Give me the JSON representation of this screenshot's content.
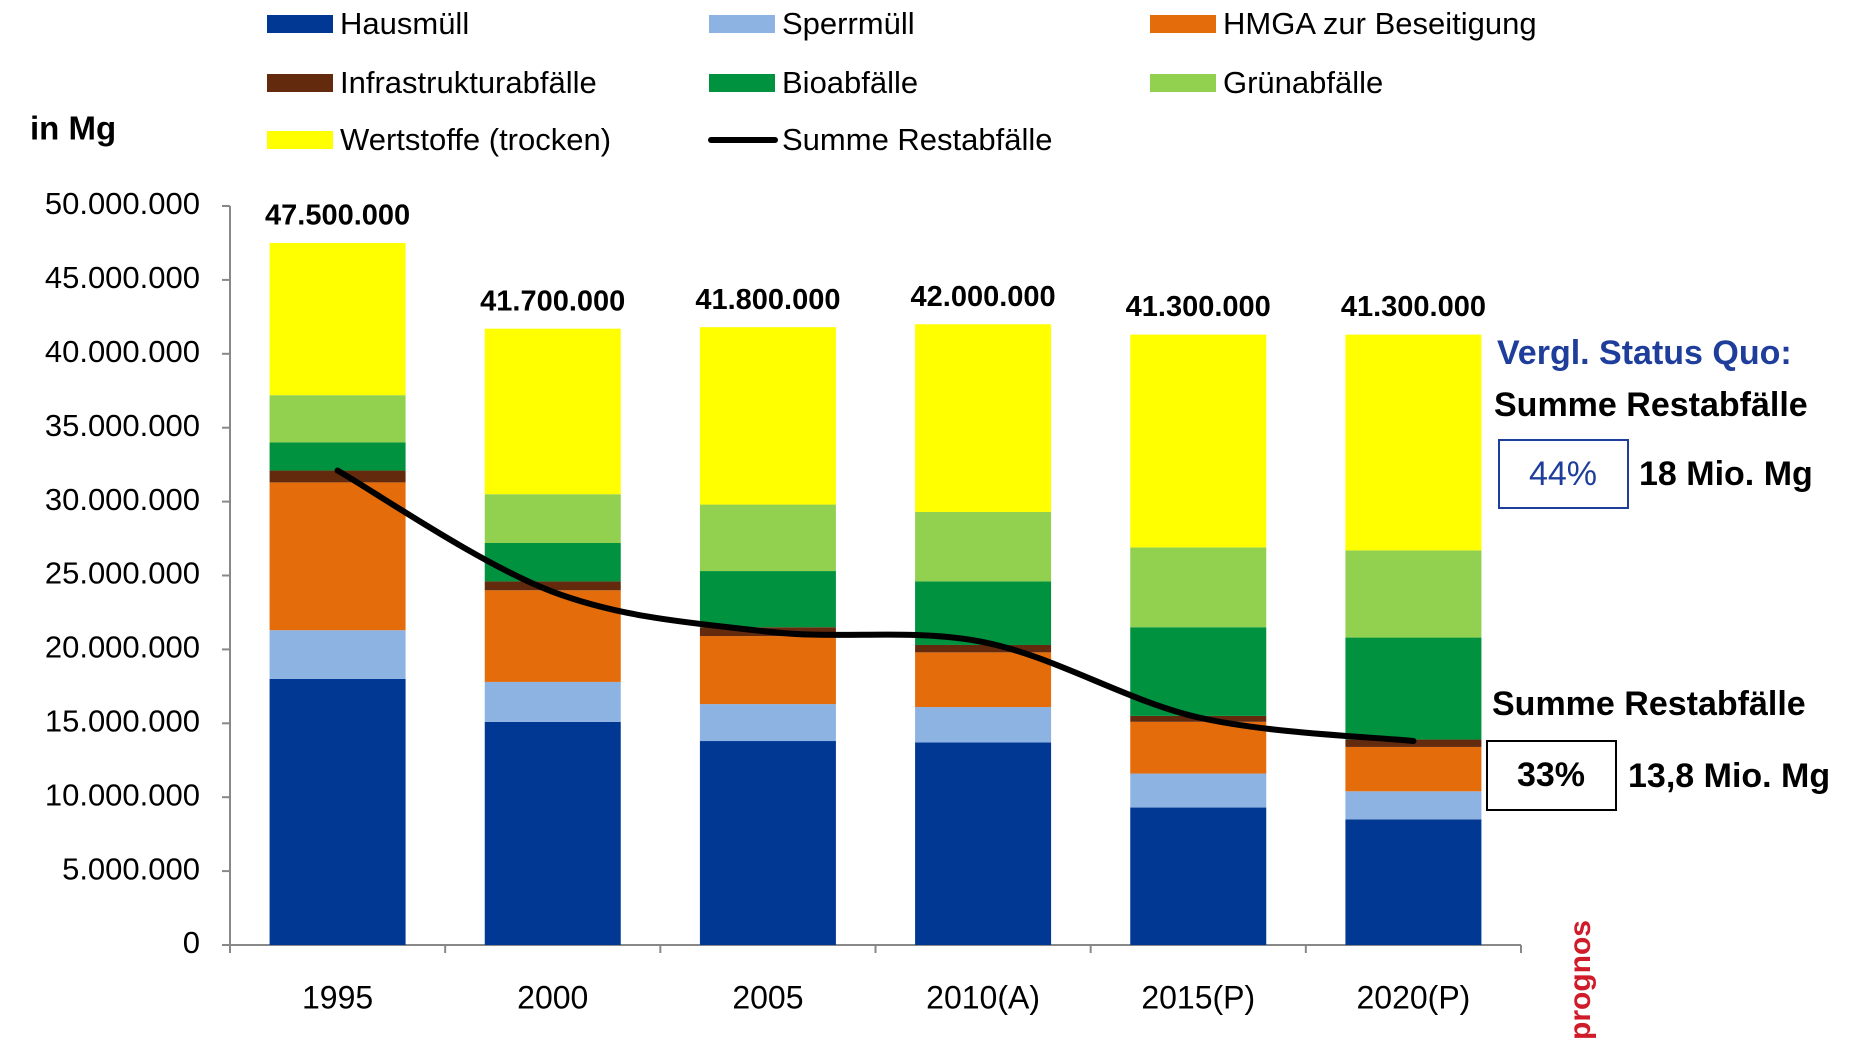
{
  "chart_data": {
    "type": "stacked_bar_line",
    "y_label": "in Mg",
    "categories": [
      "1995",
      "2000",
      "2005",
      "2010(A)",
      "2015(P)",
      "2020(P)"
    ],
    "series": [
      {
        "name": "Hausmüll",
        "color": "#003893",
        "values": [
          18000000,
          15100000,
          13800000,
          13700000,
          9300000,
          8500000
        ]
      },
      {
        "name": "Sperrmüll",
        "color": "#8db3e2",
        "values": [
          3300000,
          2700000,
          2500000,
          2400000,
          2300000,
          1900000
        ]
      },
      {
        "name": "HMGA zur Beseitigung",
        "color": "#e46c0a",
        "values": [
          10000000,
          6200000,
          4600000,
          3700000,
          3500000,
          3000000
        ]
      },
      {
        "name": "Infrastrukturabfälle",
        "color": "#632a0d",
        "values": [
          800000,
          600000,
          600000,
          500000,
          400000,
          500000
        ]
      },
      {
        "name": "Bioabfälle",
        "color": "#00923f",
        "values": [
          1900000,
          2600000,
          3800000,
          4300000,
          6000000,
          6900000
        ]
      },
      {
        "name": "Grünabfälle",
        "color": "#92d050",
        "values": [
          3200000,
          3300000,
          4500000,
          4700000,
          5400000,
          5900000
        ]
      },
      {
        "name": "Wertstoffe (trocken)",
        "color": "#ffff00",
        "values": [
          10300000,
          11200000,
          12000000,
          12700000,
          14400000,
          14600000
        ]
      },
      {
        "name": "Summe Restabfälle",
        "color": "#000000",
        "type": "line",
        "values": [
          32100000,
          23900000,
          21200000,
          20500000,
          15400000,
          13800000
        ]
      }
    ],
    "totals": [
      47500000,
      41700000,
      41800000,
      42000000,
      41300000,
      41300000
    ],
    "total_labels": [
      "47.500.000",
      "41.700.000",
      "41.800.000",
      "42.000.000",
      "41.300.000",
      "41.300.000"
    ],
    "ylim": [
      0,
      50000000
    ],
    "yticks": [
      0,
      {
        "value": 5000000,
        "label": "5.000.000"
      },
      {
        "value": 10000000,
        "label": "10.000.000"
      },
      {
        "value": 15000000,
        "label": "15.000.000"
      },
      {
        "value": 20000000,
        "label": "20.000.000"
      },
      {
        "value": 25000000,
        "label": "25.000.000"
      },
      {
        "value": 30000000,
        "label": "30.000.000"
      },
      {
        "value": 35000000,
        "label": "35.000.000"
      },
      {
        "value": 40000000,
        "label": "40.000.000"
      },
      {
        "value": 45000000,
        "label": "45.000.000"
      },
      {
        "value": 50000000,
        "label": "50.000.000"
      }
    ],
    "grid": false,
    "annotations": [
      "Vergl. Status Quo:",
      "Summe Restabfälle",
      "44%",
      "18 Mio. Mg",
      "Summe Restabfälle",
      "33%",
      "13,8 Mio. Mg",
      "prognos"
    ]
  }
}
